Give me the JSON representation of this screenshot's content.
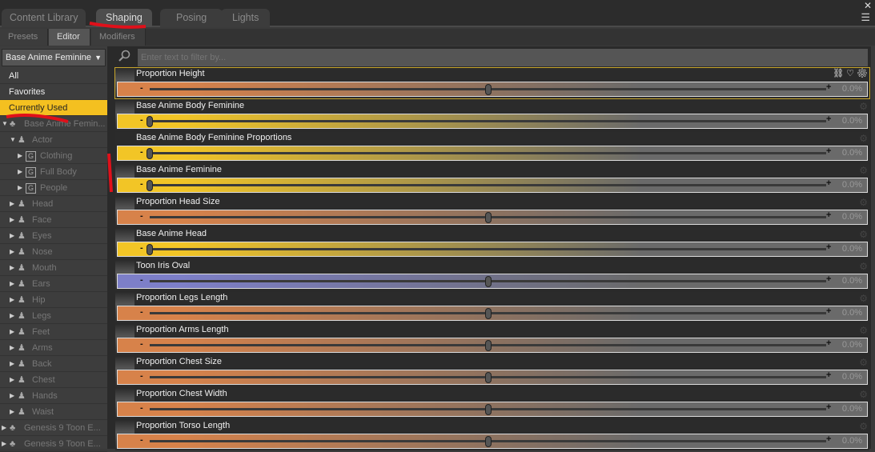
{
  "tabs": [
    {
      "label": "Content Library"
    },
    {
      "label": "Shaping",
      "active": true
    },
    {
      "label": "Posing"
    },
    {
      "label": "Lights"
    }
  ],
  "subtabs": [
    {
      "label": "Presets"
    },
    {
      "label": "Editor",
      "active": true
    },
    {
      "label": "Modifiers"
    }
  ],
  "dropdown": {
    "value": "Base Anime Feminine"
  },
  "tree": [
    {
      "label": "All",
      "level": 0,
      "type": "plain"
    },
    {
      "label": "Favorites",
      "level": 0,
      "type": "plain"
    },
    {
      "label": "Currently Used",
      "level": 0,
      "type": "plain",
      "selected": true
    },
    {
      "label": "Base Anime Femin...",
      "level": 0,
      "type": "figure",
      "expanded": true
    },
    {
      "label": "Actor",
      "level": 1,
      "type": "person",
      "expanded": true
    },
    {
      "label": "Clothing",
      "level": 2,
      "type": "group"
    },
    {
      "label": "Full Body",
      "level": 2,
      "type": "group"
    },
    {
      "label": "People",
      "level": 2,
      "type": "group"
    },
    {
      "label": "Head",
      "level": 1,
      "type": "person"
    },
    {
      "label": "Face",
      "level": 1,
      "type": "person"
    },
    {
      "label": "Eyes",
      "level": 1,
      "type": "person"
    },
    {
      "label": "Nose",
      "level": 1,
      "type": "person"
    },
    {
      "label": "Mouth",
      "level": 1,
      "type": "person"
    },
    {
      "label": "Ears",
      "level": 1,
      "type": "person"
    },
    {
      "label": "Hip",
      "level": 1,
      "type": "person"
    },
    {
      "label": "Legs",
      "level": 1,
      "type": "person"
    },
    {
      "label": "Feet",
      "level": 1,
      "type": "person"
    },
    {
      "label": "Arms",
      "level": 1,
      "type": "person"
    },
    {
      "label": "Back",
      "level": 1,
      "type": "person"
    },
    {
      "label": "Chest",
      "level": 1,
      "type": "person"
    },
    {
      "label": "Hands",
      "level": 1,
      "type": "person"
    },
    {
      "label": "Waist",
      "level": 1,
      "type": "person"
    },
    {
      "label": "Genesis 9 Toon E...",
      "level": 0,
      "type": "figure"
    },
    {
      "label": "Genesis 9 Toon E...",
      "level": 0,
      "type": "figure"
    }
  ],
  "filter": {
    "placeholder": "Enter text to filter by..."
  },
  "colors": {
    "orange": "#d7824a",
    "yellow": "#f2c526",
    "blue": "#7d7fc8",
    "selected": "#f4c020"
  },
  "sliders": [
    {
      "label": "Proportion Height",
      "value": "0.0%",
      "position": 0.5,
      "color": "orange",
      "selected": true
    },
    {
      "label": "Base Anime Body Feminine",
      "value": "0.0%",
      "position": 0,
      "color": "yellow"
    },
    {
      "label": "Base Anime Body Feminine Proportions",
      "value": "0.0%",
      "position": 0,
      "color": "yellow"
    },
    {
      "label": "Base Anime Feminine",
      "value": "0.0%",
      "position": 0,
      "color": "yellow"
    },
    {
      "label": "Proportion Head Size",
      "value": "0.0%",
      "position": 0.5,
      "color": "orange"
    },
    {
      "label": "Base Anime Head",
      "value": "0.0%",
      "position": 0,
      "color": "yellow"
    },
    {
      "label": "Toon Iris Oval",
      "value": "0.0%",
      "position": 0.5,
      "color": "blue"
    },
    {
      "label": "Proportion Legs Length",
      "value": "0.0%",
      "position": 0.5,
      "color": "orange"
    },
    {
      "label": "Proportion Arms Length",
      "value": "0.0%",
      "position": 0.5,
      "color": "orange"
    },
    {
      "label": "Proportion Chest Size",
      "value": "0.0%",
      "position": 0.5,
      "color": "orange"
    },
    {
      "label": "Proportion Chest Width",
      "value": "0.0%",
      "position": 0.5,
      "color": "orange"
    },
    {
      "label": "Proportion Torso Length",
      "value": "0.0%",
      "position": 0.5,
      "color": "orange"
    }
  ]
}
